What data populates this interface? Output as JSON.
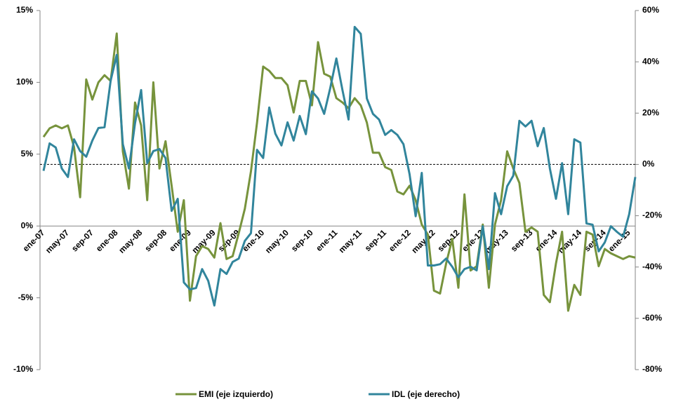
{
  "chart_data": {
    "type": "line",
    "categories": [
      "ene-07",
      null,
      null,
      null,
      "may-07",
      null,
      null,
      null,
      "sep-07",
      null,
      null,
      null,
      "ene-08",
      null,
      null,
      null,
      "may-08",
      null,
      null,
      null,
      "sep-08",
      null,
      null,
      null,
      "ene-09",
      null,
      null,
      null,
      "may-09",
      null,
      null,
      null,
      "sep-09",
      null,
      null,
      null,
      "ene-10",
      null,
      null,
      null,
      "may-10",
      null,
      null,
      null,
      "sep-10",
      null,
      null,
      null,
      "ene-11",
      null,
      null,
      null,
      "may-11",
      null,
      null,
      null,
      "sep-11",
      null,
      null,
      null,
      "ene-12",
      null,
      null,
      null,
      "may-12",
      null,
      null,
      null,
      "sep-12",
      null,
      null,
      null,
      "ene-13",
      null,
      null,
      null,
      "may-13",
      null,
      null,
      null,
      "sep-13",
      null,
      null,
      null,
      "ene-14",
      null,
      null,
      null,
      "may-14",
      null,
      null,
      null,
      "sep-14",
      null,
      null,
      null,
      "ene-15",
      null
    ],
    "series": [
      {
        "name": "EMI (eje izquierdo)",
        "color": "#77933c",
        "axis": "y",
        "values": [
          6.2,
          6.8,
          7.0,
          6.8,
          7.0,
          5.5,
          2.0,
          10.2,
          8.8,
          10.0,
          10.5,
          10.1,
          13.4,
          5.2,
          2.6,
          8.6,
          7.0,
          1.8,
          10.0,
          4.0,
          5.9,
          2.8,
          -0.4,
          1.8,
          -5.2,
          -2.1,
          -1.4,
          -1.6,
          -2.2,
          0.2,
          -2.3,
          -2.1,
          -0.5,
          1.2,
          3.8,
          7.2,
          11.1,
          10.8,
          10.3,
          10.3,
          9.8,
          7.9,
          10.1,
          10.1,
          8.4,
          12.8,
          10.6,
          10.4,
          8.9,
          8.6,
          8.2,
          8.9,
          8.4,
          7.2,
          5.1,
          5.1,
          4.1,
          3.9,
          2.4,
          2.2,
          2.8,
          1.8,
          0.1,
          -0.6,
          -4.5,
          -4.7,
          -2.6,
          -0.9,
          -4.3,
          2.2,
          -3.1,
          -2.8,
          0.1,
          -4.3,
          0.1,
          1.8,
          5.2,
          4.0,
          3.0,
          -0.4,
          -0.1,
          -0.4,
          -4.8,
          -5.3,
          -2.6,
          -0.4,
          -5.9,
          -4.1,
          -4.8,
          -0.4,
          -0.6,
          -2.8,
          -1.6,
          -1.9,
          -2.1,
          -2.3,
          -2.1,
          -2.2
        ]
      },
      {
        "name": "IDL (eje derecho)",
        "color": "#31859c",
        "axis": "y2",
        "values": [
          -2.5,
          8.2,
          6.6,
          -1.6,
          -4.9,
          9.8,
          5.2,
          3.0,
          9.3,
          14.2,
          14.5,
          32.6,
          42.7,
          7.9,
          -1.6,
          16.1,
          29.0,
          0.5,
          5.2,
          6.0,
          2.5,
          -18.1,
          -13.4,
          -46.0,
          -48.7,
          -48.2,
          -40.8,
          -45.4,
          -55.0,
          -40.8,
          -42.7,
          -38.0,
          -36.7,
          -29.8,
          -26.8,
          5.7,
          2.5,
          22.2,
          12.0,
          7.4,
          16.4,
          9.3,
          18.9,
          11.8,
          28.5,
          25.7,
          19.7,
          29.8,
          41.3,
          29.0,
          17.5,
          53.6,
          50.9,
          25.7,
          19.7,
          17.5,
          11.5,
          13.4,
          11.5,
          7.9,
          -3.8,
          -20.2,
          -3.3,
          -39.4,
          -39.4,
          -38.9,
          -36.7,
          -39.9,
          -44.0,
          -40.8,
          -39.9,
          -41.3,
          -24.1,
          -40.8,
          -11.2,
          -19.4,
          -8.5,
          -4.4,
          17.0,
          14.8,
          17.0,
          7.1,
          14.2,
          -1.6,
          -13.4,
          0.5,
          -19.4,
          9.8,
          8.5,
          -23.0,
          -23.5,
          -33.9,
          -30.4,
          -24.1,
          -26.3,
          -28.2,
          -19.4,
          -4.9
        ]
      }
    ],
    "ylim": [
      -10,
      15
    ],
    "yticks": [
      {
        "value": -10,
        "label": "-10%"
      },
      {
        "value": -5,
        "label": "-5%"
      },
      {
        "value": 0,
        "label": "0%"
      },
      {
        "value": 5,
        "label": "5%"
      },
      {
        "value": 10,
        "label": "10%"
      },
      {
        "value": 15,
        "label": "15%"
      }
    ],
    "y2lim": [
      -80,
      60
    ],
    "y2ticks": [
      {
        "value": -80,
        "label": "-80%"
      },
      {
        "value": -60,
        "label": "-60%"
      },
      {
        "value": -40,
        "label": "-40%"
      },
      {
        "value": -20,
        "label": "-20%"
      },
      {
        "value": 0,
        "label": "0%"
      },
      {
        "value": 20,
        "label": "20%"
      },
      {
        "value": 40,
        "label": "40%"
      },
      {
        "value": 60,
        "label": "60%"
      }
    ],
    "grid": false,
    "legend": "bottom"
  }
}
